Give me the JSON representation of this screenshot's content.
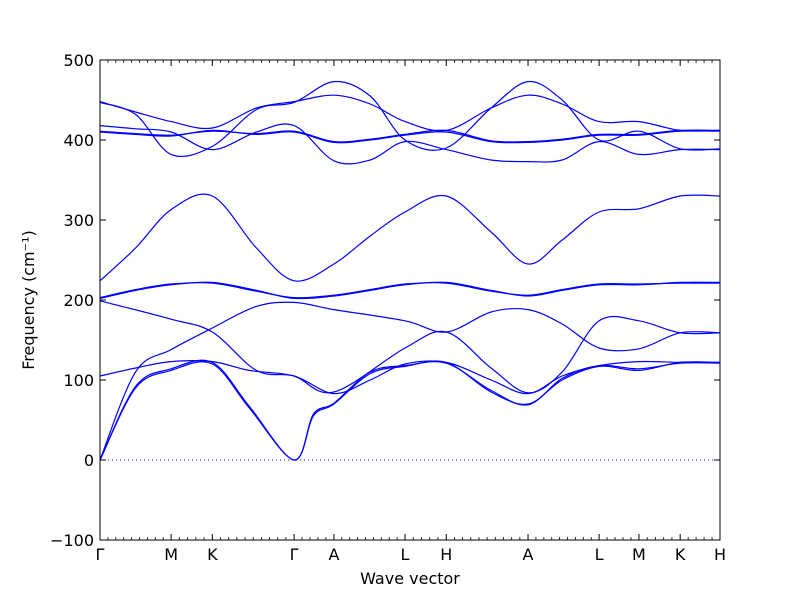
{
  "chart_data": {
    "type": "line",
    "title": "",
    "xlabel": "Wave vector",
    "ylabel": "Frequency (cm⁻¹)",
    "ylim": [
      -100,
      500
    ],
    "yticks": [
      -100,
      0,
      100,
      200,
      300,
      400,
      500
    ],
    "grid": false,
    "legend": "none",
    "line_color": "#0000ff",
    "zero_line": {
      "y": 0,
      "style": "dotted"
    },
    "kpoints": [
      {
        "label": "Γ",
        "x": 0.0
      },
      {
        "label": "M",
        "x": 1.0
      },
      {
        "label": "K",
        "x": 1.58
      },
      {
        "label": "Γ",
        "x": 2.73
      },
      {
        "label": "A",
        "x": 3.29
      },
      {
        "label": "L",
        "x": 4.29
      },
      {
        "label": "H",
        "x": 4.87
      },
      {
        "label": "A",
        "x": 6.02
      },
      {
        "label": "L",
        "x": 7.02
      },
      {
        "label": "M",
        "x": 7.58
      },
      {
        "label": "K",
        "x": 8.16
      },
      {
        "label": "H",
        "x": 8.72
      }
    ],
    "series": [
      {
        "points": [
          [
            0,
            0
          ],
          [
            0.5,
            90
          ],
          [
            1.0,
            112
          ],
          [
            1.58,
            120
          ],
          [
            2.1,
            65
          ],
          [
            2.73,
            0
          ],
          [
            3.0,
            55
          ],
          [
            3.29,
            70
          ],
          [
            3.8,
            108
          ],
          [
            4.29,
            117
          ],
          [
            4.87,
            122
          ],
          [
            5.5,
            85
          ],
          [
            6.02,
            70
          ],
          [
            6.5,
            100
          ],
          [
            7.02,
            117
          ],
          [
            7.58,
            112
          ],
          [
            8.16,
            122
          ],
          [
            8.72,
            122
          ]
        ]
      },
      {
        "points": [
          [
            0,
            0
          ],
          [
            0.5,
            92
          ],
          [
            1.0,
            114
          ],
          [
            1.58,
            122
          ],
          [
            2.1,
            67
          ],
          [
            2.73,
            0
          ],
          [
            3.0,
            57
          ],
          [
            3.29,
            71
          ],
          [
            3.8,
            110
          ],
          [
            4.29,
            118
          ],
          [
            4.87,
            121
          ],
          [
            5.5,
            87
          ],
          [
            6.02,
            69
          ],
          [
            6.5,
            102
          ],
          [
            7.02,
            118
          ],
          [
            7.58,
            114
          ],
          [
            8.16,
            121
          ],
          [
            8.72,
            121
          ]
        ]
      },
      {
        "points": [
          [
            0,
            0
          ],
          [
            0.5,
            110
          ],
          [
            1.0,
            138
          ],
          [
            1.58,
            165
          ],
          [
            2.2,
            192
          ],
          [
            2.73,
            197
          ],
          [
            3.29,
            188
          ],
          [
            4.29,
            174
          ],
          [
            4.87,
            160
          ],
          [
            5.5,
            185
          ],
          [
            6.02,
            188
          ],
          [
            6.5,
            170
          ],
          [
            7.02,
            140
          ],
          [
            7.58,
            139
          ],
          [
            8.16,
            159
          ],
          [
            8.72,
            159
          ]
        ]
      },
      {
        "points": [
          [
            0,
            105
          ],
          [
            0.5,
            115
          ],
          [
            1.0,
            123
          ],
          [
            1.58,
            123
          ],
          [
            2.1,
            112
          ],
          [
            2.73,
            105
          ],
          [
            3.29,
            83
          ],
          [
            3.8,
            100
          ],
          [
            4.29,
            120
          ],
          [
            4.87,
            122
          ],
          [
            5.5,
            100
          ],
          [
            6.02,
            83
          ],
          [
            6.5,
            105
          ],
          [
            7.02,
            118
          ],
          [
            7.58,
            123
          ],
          [
            8.16,
            122
          ],
          [
            8.72,
            122
          ]
        ]
      },
      {
        "points": [
          [
            0,
            199
          ],
          [
            1.0,
            176
          ],
          [
            1.58,
            160
          ],
          [
            2.2,
            112
          ],
          [
            2.73,
            105
          ],
          [
            3.29,
            85
          ],
          [
            4.29,
            140
          ],
          [
            4.87,
            160
          ],
          [
            5.5,
            115
          ],
          [
            6.02,
            84
          ],
          [
            6.5,
            110
          ],
          [
            7.02,
            174
          ],
          [
            7.58,
            174
          ],
          [
            8.16,
            159
          ],
          [
            8.72,
            159
          ]
        ]
      },
      {
        "points": [
          [
            0,
            202
          ],
          [
            0.5,
            212
          ],
          [
            1.0,
            219
          ],
          [
            1.58,
            222
          ],
          [
            2.2,
            212
          ],
          [
            2.73,
            202
          ],
          [
            3.29,
            205
          ],
          [
            3.8,
            212
          ],
          [
            4.29,
            219
          ],
          [
            4.87,
            222
          ],
          [
            5.5,
            212
          ],
          [
            6.02,
            205
          ],
          [
            6.5,
            212
          ],
          [
            7.02,
            219
          ],
          [
            7.58,
            219
          ],
          [
            8.16,
            222
          ],
          [
            8.72,
            222
          ]
        ]
      },
      {
        "points": [
          [
            0,
            203
          ],
          [
            0.5,
            213
          ],
          [
            1.0,
            220
          ],
          [
            1.58,
            221
          ],
          [
            2.2,
            211
          ],
          [
            2.73,
            203
          ],
          [
            3.29,
            206
          ],
          [
            3.8,
            213
          ],
          [
            4.29,
            220
          ],
          [
            4.87,
            221
          ],
          [
            5.5,
            211
          ],
          [
            6.02,
            206
          ],
          [
            6.5,
            213
          ],
          [
            7.02,
            220
          ],
          [
            7.58,
            220
          ],
          [
            8.16,
            221
          ],
          [
            8.72,
            221
          ]
        ]
      },
      {
        "points": [
          [
            0,
            224
          ],
          [
            0.5,
            265
          ],
          [
            1.0,
            313
          ],
          [
            1.58,
            330
          ],
          [
            2.2,
            265
          ],
          [
            2.73,
            224
          ],
          [
            3.29,
            245
          ],
          [
            3.8,
            280
          ],
          [
            4.29,
            310
          ],
          [
            4.87,
            330
          ],
          [
            5.5,
            285
          ],
          [
            6.02,
            245
          ],
          [
            6.5,
            275
          ],
          [
            7.02,
            310
          ],
          [
            7.58,
            314
          ],
          [
            8.16,
            330
          ],
          [
            8.72,
            330
          ]
        ]
      },
      {
        "points": [
          [
            0,
            410
          ],
          [
            0.5,
            407
          ],
          [
            1.0,
            405
          ],
          [
            1.58,
            412
          ],
          [
            2.2,
            407
          ],
          [
            2.73,
            410
          ],
          [
            3.29,
            397
          ],
          [
            3.8,
            400
          ],
          [
            4.29,
            406
          ],
          [
            4.87,
            410
          ],
          [
            5.5,
            398
          ],
          [
            6.02,
            397
          ],
          [
            6.5,
            400
          ],
          [
            7.02,
            406
          ],
          [
            7.58,
            406
          ],
          [
            8.16,
            411
          ],
          [
            8.72,
            411
          ]
        ]
      },
      {
        "points": [
          [
            0,
            411
          ],
          [
            0.5,
            408
          ],
          [
            1.0,
            406
          ],
          [
            1.58,
            411
          ],
          [
            2.2,
            408
          ],
          [
            2.73,
            411
          ],
          [
            3.29,
            398
          ],
          [
            3.8,
            401
          ],
          [
            4.29,
            407
          ],
          [
            4.87,
            412
          ],
          [
            5.5,
            399
          ],
          [
            6.02,
            398
          ],
          [
            6.5,
            401
          ],
          [
            7.02,
            407
          ],
          [
            7.58,
            407
          ],
          [
            8.16,
            412
          ],
          [
            8.72,
            412
          ]
        ]
      },
      {
        "points": [
          [
            0,
            418
          ],
          [
            0.5,
            414
          ],
          [
            1.0,
            410
          ],
          [
            1.58,
            388
          ],
          [
            2.2,
            410
          ],
          [
            2.73,
            418
          ],
          [
            3.29,
            374
          ],
          [
            3.8,
            375
          ],
          [
            4.29,
            398
          ],
          [
            4.87,
            388
          ],
          [
            5.5,
            375
          ],
          [
            6.02,
            373
          ],
          [
            6.5,
            375
          ],
          [
            7.02,
            398
          ],
          [
            7.58,
            382
          ],
          [
            8.16,
            388
          ],
          [
            8.72,
            388
          ]
        ]
      },
      {
        "points": [
          [
            0,
            448
          ],
          [
            0.5,
            435
          ],
          [
            1.0,
            423
          ],
          [
            1.58,
            415
          ],
          [
            2.2,
            440
          ],
          [
            2.73,
            448
          ],
          [
            3.29,
            456
          ],
          [
            3.8,
            445
          ],
          [
            4.29,
            423
          ],
          [
            4.87,
            412
          ],
          [
            5.5,
            440
          ],
          [
            6.02,
            456
          ],
          [
            6.5,
            445
          ],
          [
            7.02,
            423
          ],
          [
            7.58,
            423
          ],
          [
            8.16,
            412
          ],
          [
            8.72,
            412
          ]
        ]
      },
      {
        "points": [
          [
            0,
            447
          ],
          [
            0.5,
            432
          ],
          [
            1.0,
            382
          ],
          [
            1.58,
            392
          ],
          [
            2.2,
            438
          ],
          [
            2.73,
            447
          ],
          [
            3.29,
            473
          ],
          [
            3.8,
            455
          ],
          [
            4.29,
            400
          ],
          [
            4.87,
            390
          ],
          [
            5.5,
            440
          ],
          [
            6.02,
            473
          ],
          [
            6.5,
            450
          ],
          [
            7.02,
            400
          ],
          [
            7.58,
            411
          ],
          [
            8.16,
            389
          ],
          [
            8.72,
            389
          ]
        ]
      }
    ]
  }
}
